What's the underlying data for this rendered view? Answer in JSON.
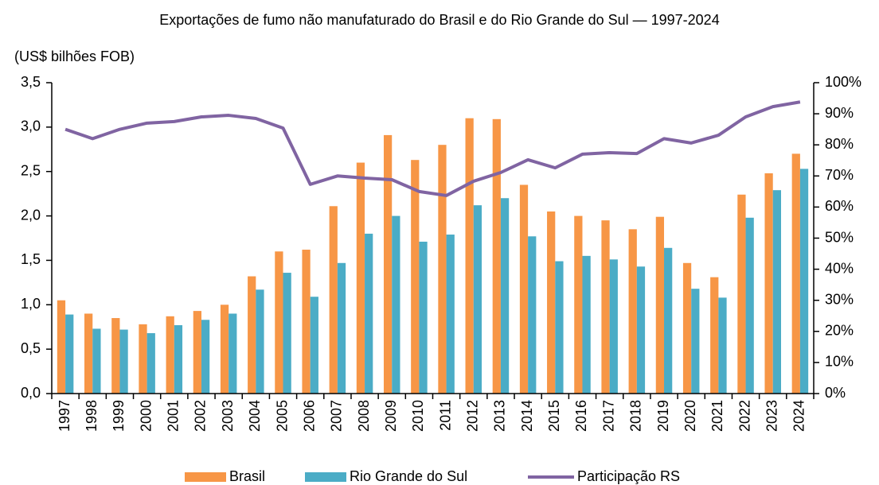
{
  "chart_data": {
    "type": "bar",
    "title": "Exportações de fumo não manufaturado do Brasil e do Rio Grande do Sul — 1997-2024",
    "subtitle": "(US$ bilhões FOB)",
    "categories": [
      "1997",
      "1998",
      "1999",
      "2000",
      "2001",
      "2002",
      "2003",
      "2004",
      "2005",
      "2006",
      "2007",
      "2008",
      "2009",
      "2010",
      "2011",
      "2012",
      "2013",
      "2014",
      "2015",
      "2016",
      "2017",
      "2018",
      "2019",
      "2020",
      "2021",
      "2022",
      "2023",
      "2024"
    ],
    "series": [
      {
        "name": "Brasil",
        "type": "bar",
        "color": "#f79646",
        "values": [
          1.05,
          0.9,
          0.85,
          0.78,
          0.87,
          0.93,
          1.0,
          1.32,
          1.6,
          1.62,
          2.11,
          2.6,
          2.91,
          2.63,
          2.8,
          3.1,
          3.09,
          2.35,
          2.05,
          2.0,
          1.95,
          1.85,
          1.99,
          1.47,
          1.31,
          2.24,
          2.48,
          2.7
        ]
      },
      {
        "name": "Rio Grande do Sul",
        "type": "bar",
        "color": "#4bacc6",
        "values": [
          0.89,
          0.73,
          0.72,
          0.68,
          0.77,
          0.83,
          0.9,
          1.17,
          1.36,
          1.09,
          1.47,
          1.8,
          2.0,
          1.71,
          1.79,
          2.12,
          2.2,
          1.77,
          1.49,
          1.55,
          1.51,
          1.43,
          1.64,
          1.18,
          1.08,
          1.98,
          2.29,
          2.53
        ]
      },
      {
        "name": "Participação RS",
        "type": "line",
        "axis": "y2",
        "color": "#8064a2",
        "values": [
          85,
          82,
          85,
          87,
          87.5,
          89,
          89.5,
          88.5,
          85.4,
          67.3,
          70,
          69.3,
          68.8,
          65,
          63.7,
          68.3,
          71.1,
          75.2,
          72.6,
          77,
          77.5,
          77.2,
          82,
          80.6,
          83.1,
          89,
          92.3,
          93.8
        ]
      }
    ],
    "ylim": [
      0,
      3.5
    ],
    "yticks": [
      {
        "value": 0,
        "label": "0,0"
      },
      {
        "value": 0.5,
        "label": "0,5"
      },
      {
        "value": 1,
        "label": "1,0"
      },
      {
        "value": 1.5,
        "label": "1,5"
      },
      {
        "value": 2,
        "label": "2,0"
      },
      {
        "value": 2.5,
        "label": "2,5"
      },
      {
        "value": 3,
        "label": "3,0"
      },
      {
        "value": 3.5,
        "label": "3,5"
      }
    ],
    "y2lim": [
      0,
      100
    ],
    "y2ticks": [
      {
        "value": 0,
        "label": "0%"
      },
      {
        "value": 10,
        "label": "10%"
      },
      {
        "value": 20,
        "label": "20%"
      },
      {
        "value": 30,
        "label": "30%"
      },
      {
        "value": 40,
        "label": "40%"
      },
      {
        "value": 50,
        "label": "50%"
      },
      {
        "value": 60,
        "label": "60%"
      },
      {
        "value": 70,
        "label": "70%"
      },
      {
        "value": 80,
        "label": "80%"
      },
      {
        "value": 90,
        "label": "90%"
      },
      {
        "value": 100,
        "label": "100%"
      }
    ],
    "grid": false,
    "legend": "bottom"
  }
}
